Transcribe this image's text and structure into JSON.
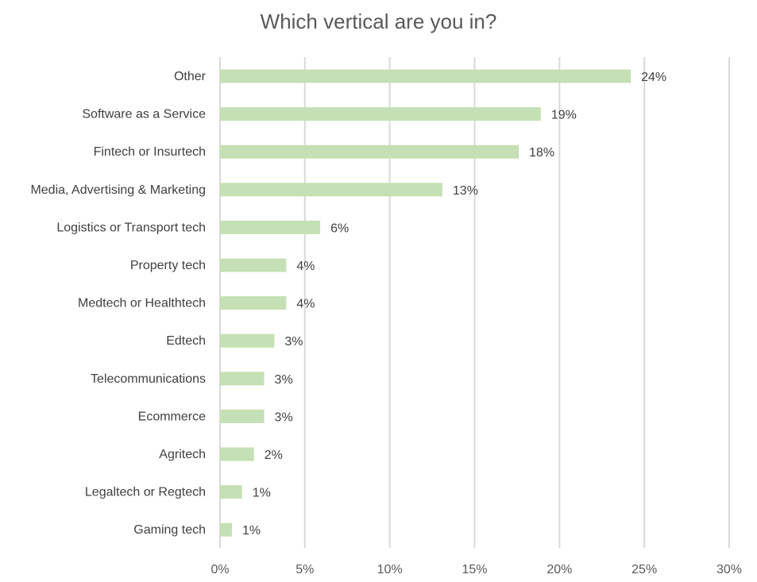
{
  "chart_data": {
    "type": "bar",
    "orientation": "horizontal",
    "title": "Which vertical are you in?",
    "xlabel": "",
    "ylabel": "",
    "categories": [
      "Other",
      "Software as a Service",
      "Fintech or Insurtech",
      "Media, Advertising & Marketing",
      "Logistics or Transport tech",
      "Property tech",
      "Medtech or Healthtech",
      "Edtech",
      "Telecommunications",
      "Ecommerce",
      "Agritech",
      "Legaltech or Regtech",
      "Gaming tech"
    ],
    "values": [
      24.2,
      18.9,
      17.6,
      13.1,
      5.9,
      3.9,
      3.9,
      3.2,
      2.6,
      2.6,
      2.0,
      1.3,
      0.7
    ],
    "data_labels": [
      "24%",
      "19%",
      "18%",
      "13%",
      "6%",
      "4%",
      "4%",
      "3%",
      "3%",
      "3%",
      "2%",
      "1%",
      "1%"
    ],
    "xlim": [
      0,
      30
    ],
    "x_ticks": [
      "0%",
      "5%",
      "10%",
      "15%",
      "20%",
      "25%",
      "30%"
    ],
    "x_tick_values": [
      0,
      5,
      10,
      15,
      20,
      25,
      30
    ],
    "grid": "vertical",
    "legend": "none",
    "colors": {
      "bar": "#c5e0b4",
      "grid": "#d9d9d9",
      "label_text": "#404040",
      "title_text": "#595959"
    }
  }
}
